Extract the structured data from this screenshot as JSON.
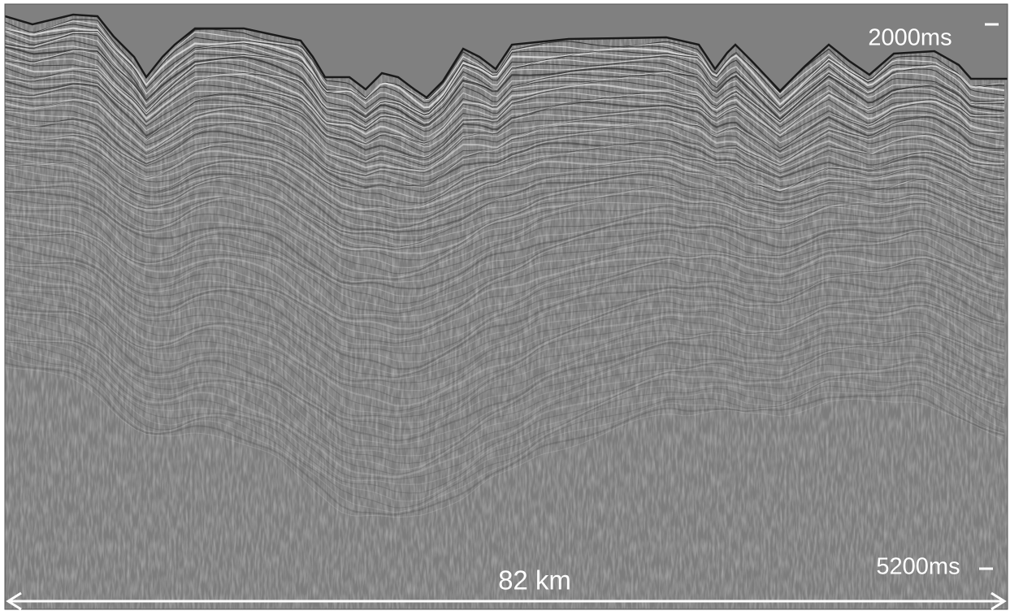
{
  "labels": {
    "top_time": "2000ms",
    "bottom_time": "5200ms",
    "distance": "82 km"
  }
}
